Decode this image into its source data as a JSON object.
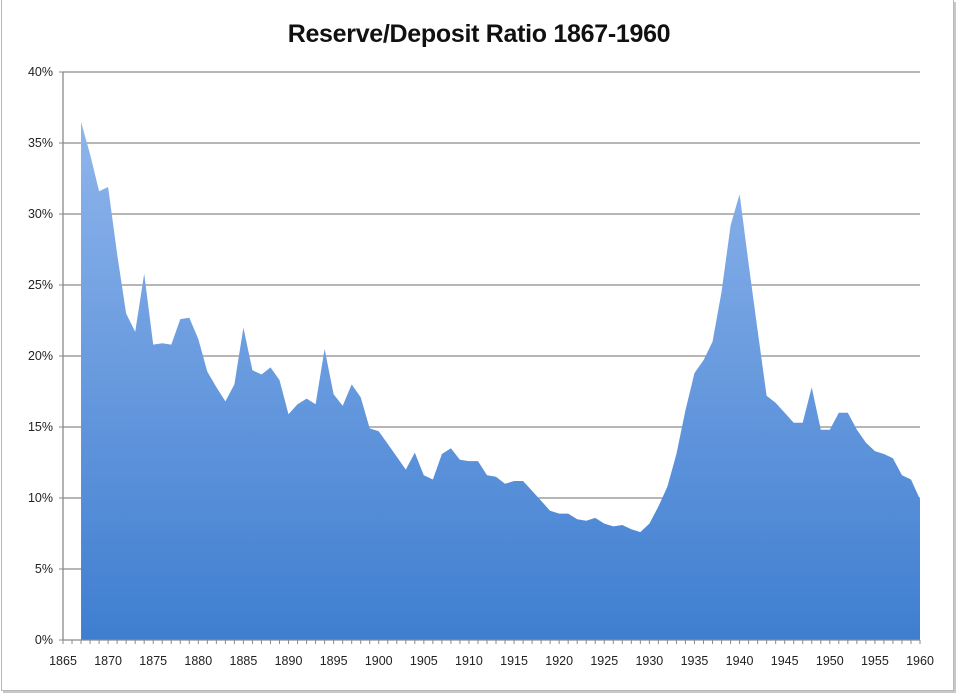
{
  "chart_data": {
    "type": "area",
    "title": "Reserve/Deposit Ratio 1867-1960",
    "xlabel": "",
    "ylabel": "",
    "xlim": [
      1865,
      1960
    ],
    "ylim": [
      0,
      40
    ],
    "grid": true,
    "legend": null,
    "y_ticks": [
      "0%",
      "5%",
      "10%",
      "15%",
      "20%",
      "25%",
      "30%",
      "35%",
      "40%"
    ],
    "x_ticks": [
      "1865",
      "1870",
      "1875",
      "1880",
      "1885",
      "1890",
      "1895",
      "1900",
      "1905",
      "1910",
      "1915",
      "1920",
      "1925",
      "1930",
      "1935",
      "1940",
      "1945",
      "1950",
      "1955",
      "1960"
    ],
    "fill_color_top": "#8fb5ec",
    "fill_color_bottom": "#3f7ed0",
    "x": [
      1867,
      1868,
      1869,
      1870,
      1871,
      1872,
      1873,
      1874,
      1875,
      1876,
      1877,
      1878,
      1879,
      1880,
      1881,
      1882,
      1883,
      1884,
      1885,
      1886,
      1887,
      1888,
      1889,
      1890,
      1891,
      1892,
      1893,
      1894,
      1895,
      1896,
      1897,
      1898,
      1899,
      1900,
      1901,
      1902,
      1903,
      1904,
      1905,
      1906,
      1907,
      1908,
      1909,
      1910,
      1911,
      1912,
      1913,
      1914,
      1915,
      1916,
      1917,
      1918,
      1919,
      1920,
      1921,
      1922,
      1923,
      1924,
      1925,
      1926,
      1927,
      1928,
      1929,
      1930,
      1931,
      1932,
      1933,
      1934,
      1935,
      1936,
      1937,
      1938,
      1939,
      1940,
      1941,
      1942,
      1943,
      1944,
      1945,
      1946,
      1947,
      1948,
      1949,
      1950,
      1951,
      1952,
      1953,
      1954,
      1955,
      1956,
      1957,
      1958,
      1959,
      1960
    ],
    "values": [
      36.5,
      34.2,
      31.6,
      31.9,
      27.2,
      23.0,
      21.7,
      25.8,
      20.8,
      20.9,
      20.8,
      22.6,
      22.7,
      21.2,
      18.9,
      17.8,
      16.8,
      18.0,
      22.0,
      19.0,
      18.7,
      19.2,
      18.3,
      15.9,
      16.6,
      17.0,
      16.6,
      20.5,
      17.3,
      16.5,
      18.0,
      17.1,
      14.9,
      14.7,
      13.8,
      12.9,
      12.0,
      13.2,
      11.6,
      11.3,
      13.1,
      13.5,
      12.7,
      12.6,
      12.6,
      11.6,
      11.5,
      11.0,
      11.2,
      11.2,
      10.5,
      9.8,
      9.1,
      8.9,
      8.9,
      8.5,
      8.4,
      8.6,
      8.2,
      8.0,
      8.1,
      7.8,
      7.6,
      8.2,
      9.4,
      10.8,
      13.1,
      16.2,
      18.8,
      19.7,
      21.0,
      24.5,
      29.2,
      31.4,
      26.5,
      21.8,
      17.2,
      16.7,
      16.0,
      15.3,
      15.3,
      17.8,
      14.8,
      14.8,
      16.0,
      16.0,
      14.8,
      13.9,
      13.3,
      13.1,
      12.8,
      11.6,
      11.3,
      9.9
    ]
  }
}
